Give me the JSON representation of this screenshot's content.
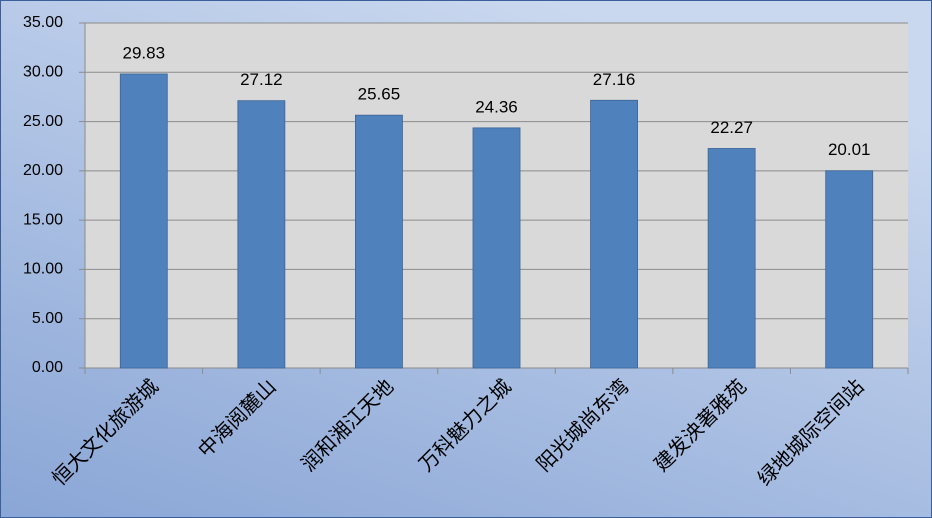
{
  "chart_data": {
    "type": "bar",
    "categories": [
      "恒大文化旅游城",
      "中海阅麓山",
      "润和湘江天地",
      "万科魅力之城",
      "阳光城尚东湾",
      "建发泱著雅苑",
      "绿地城际空间站"
    ],
    "values": [
      29.83,
      27.12,
      25.65,
      24.36,
      27.16,
      22.27,
      20.01
    ],
    "color": "#4f81bd",
    "ylim": [
      0,
      35
    ],
    "yticks": [
      {
        "value": 0,
        "label": "0.00"
      },
      {
        "value": 5,
        "label": "5.00"
      },
      {
        "value": 10,
        "label": "10.00"
      },
      {
        "value": 15,
        "label": "15.00"
      },
      {
        "value": 20,
        "label": "20.00"
      },
      {
        "value": 25,
        "label": "25.00"
      },
      {
        "value": 30,
        "label": "30.00"
      },
      {
        "value": 35,
        "label": "35.00"
      }
    ],
    "grid": true
  }
}
